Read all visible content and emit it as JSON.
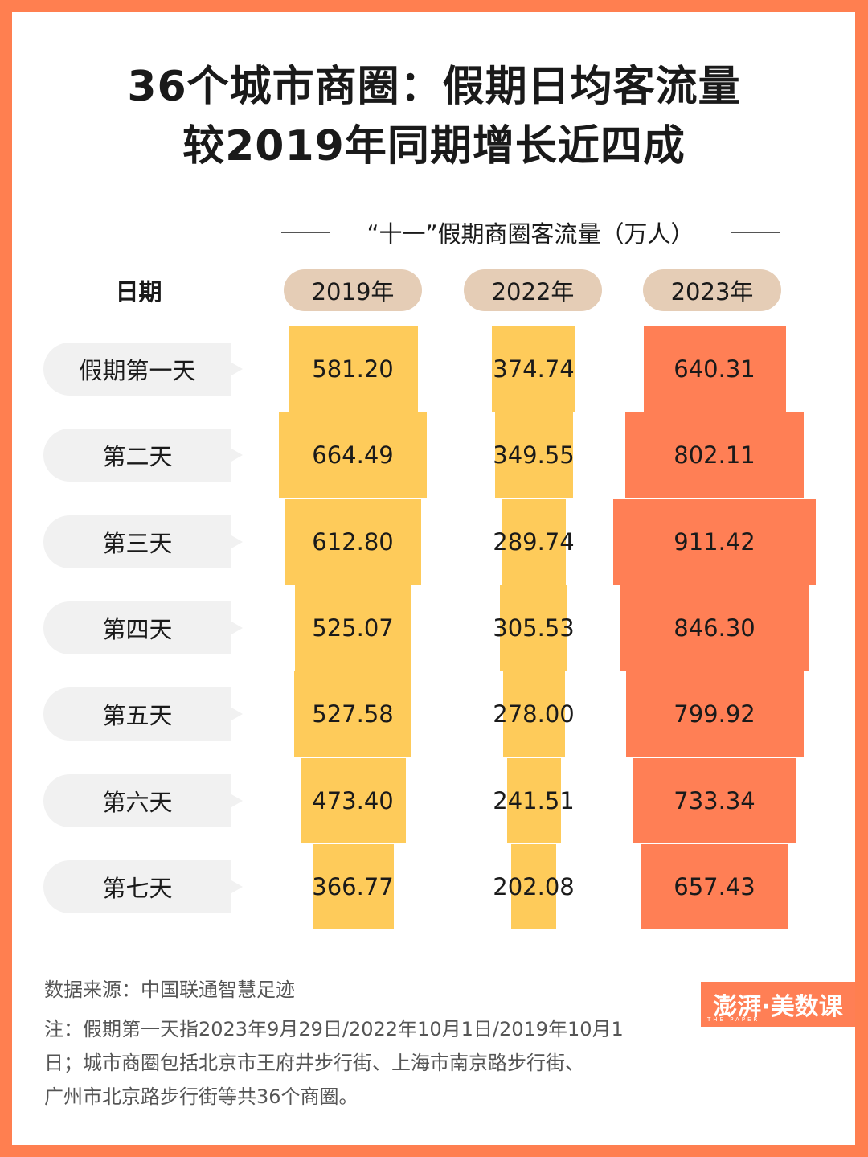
{
  "title": {
    "line1": "36个城市商圈：假期日均客流量",
    "line2": "较2019年同期增长近四成"
  },
  "subtitle": "“十一”假期商圈客流量（万人）",
  "date_header": "日期",
  "years": [
    "2019年",
    "2022年",
    "2023年"
  ],
  "colors": {
    "frame": "#ff7f50",
    "bar_past": "#fecb5a",
    "bar_2023": "#ff7f55",
    "pill": "#e5cdb6",
    "label_bg": "#f1f1f1"
  },
  "rows": [
    {
      "label": "假期第一天",
      "v2019": "581.20",
      "v2022": "374.74",
      "v2023": "640.31"
    },
    {
      "label": "第二天",
      "v2019": "664.49",
      "v2022": "349.55",
      "v2023": "802.11"
    },
    {
      "label": "第三天",
      "v2019": "612.80",
      "v2022": "289.74",
      "v2023": "911.42"
    },
    {
      "label": "第四天",
      "v2019": "525.07",
      "v2022": "305.53",
      "v2023": "846.30"
    },
    {
      "label": "第五天",
      "v2019": "527.58",
      "v2022": "278.00",
      "v2023": "799.92"
    },
    {
      "label": "第六天",
      "v2019": "473.40",
      "v2022": "241.51",
      "v2023": "733.34"
    },
    {
      "label": "第七天",
      "v2019": "366.77",
      "v2022": "202.08",
      "v2023": "657.43"
    }
  ],
  "footer": {
    "source": "数据来源：中国联通智慧足迹",
    "note_line1": "注：假期第一天指2023年9月29日/2022年10月1日/2019年10月1",
    "note_line2": "日；城市商圈包括北京市王府井步行街、上海市南京路步行街、",
    "note_line3": "广州市北京路步行街等共36个商圈。"
  },
  "logo": {
    "text": "澎湃·美数课",
    "sub": "THE PAPER"
  },
  "chart_data": {
    "type": "bar",
    "orientation": "horizontal-centered (funnel-style)",
    "title": "36个城市商圈：假期日均客流量较2019年同期增长近四成",
    "subtitle": "“十一”假期商圈客流量（万人）",
    "unit": "万人",
    "categories": [
      "假期第一天",
      "第二天",
      "第三天",
      "第四天",
      "第五天",
      "第六天",
      "第七天"
    ],
    "series": [
      {
        "name": "2019年",
        "values": [
          581.2,
          664.49,
          612.8,
          525.07,
          527.58,
          473.4,
          366.77
        ]
      },
      {
        "name": "2022年",
        "values": [
          374.74,
          349.55,
          289.74,
          305.53,
          278.0,
          241.51,
          202.08
        ]
      },
      {
        "name": "2023年",
        "values": [
          640.31,
          802.11,
          911.42,
          846.3,
          799.92,
          733.34,
          657.43
        ]
      }
    ],
    "source": "中国联通智慧足迹",
    "grid": false,
    "legend": "column headers (pills)"
  }
}
